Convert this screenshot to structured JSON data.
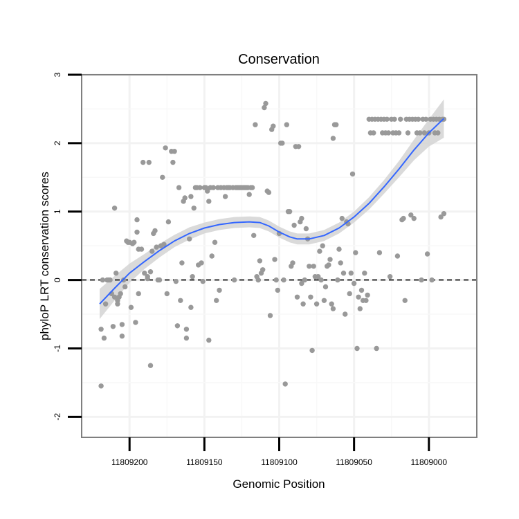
{
  "chart_data": {
    "type": "scatter",
    "title": "Conservation",
    "xlabel": "Genomic Position",
    "ylabel": "phyloP LRT conservation scores",
    "x_reversed": true,
    "xlim": [
      11809232,
      11808968
    ],
    "ylim": [
      -2.3,
      3
    ],
    "x_ticks": [
      11809200,
      11809150,
      11809100,
      11809050,
      11809000
    ],
    "x_tick_labels": [
      "11809200",
      "11809150",
      "11809100",
      "11809050",
      "11809000"
    ],
    "y_ticks": [
      -2,
      -1,
      0,
      1,
      2,
      3
    ],
    "y_tick_labels": [
      "-2",
      "-1",
      "0",
      "1",
      "2",
      "3"
    ],
    "reference_line": {
      "y": 0,
      "style": "dashed",
      "color": "#000000"
    },
    "grid": true,
    "colors": {
      "points": "#999999",
      "smooth_line": "#3366ff",
      "ribbon": "#d3d3d3",
      "panel_border": "#7f7f7f",
      "grid": "#f2f2f2"
    },
    "points": [
      [
        11809219,
        -1.55
      ],
      [
        11809219,
        -0.72
      ],
      [
        11809217,
        -0.85
      ],
      [
        11809218,
        0.0
      ],
      [
        11809216,
        -0.35
      ],
      [
        11809215,
        0.0
      ],
      [
        11809214,
        0.0
      ],
      [
        11809213,
        0.0
      ],
      [
        11809212,
        -0.2
      ],
      [
        11809211,
        -0.68
      ],
      [
        11809210,
        -0.25
      ],
      [
        11809210,
        1.05
      ],
      [
        11809209,
        0.1
      ],
      [
        11809208,
        -0.3
      ],
      [
        11809208,
        -0.35
      ],
      [
        11809207,
        -0.25
      ],
      [
        11809206,
        -0.2
      ],
      [
        11809205,
        -0.65
      ],
      [
        11809205,
        -0.82
      ],
      [
        11809204,
        0.0
      ],
      [
        11809203,
        -0.1
      ],
      [
        11809202,
        0.57
      ],
      [
        11809201,
        0.55
      ],
      [
        11809200,
        0.55
      ],
      [
        11809199,
        -0.4
      ],
      [
        11809198,
        0.53
      ],
      [
        11809197,
        0.55
      ],
      [
        11809196,
        -0.62
      ],
      [
        11809195,
        0.88
      ],
      [
        11809195,
        0.7
      ],
      [
        11809194,
        0.45
      ],
      [
        11809194,
        -0.2
      ],
      [
        11809192,
        0.45
      ],
      [
        11809191,
        1.72
      ],
      [
        11809190,
        0.1
      ],
      [
        11809188,
        0.05
      ],
      [
        11809188,
        0.02
      ],
      [
        11809187,
        1.72
      ],
      [
        11809186,
        0.12
      ],
      [
        11809186,
        -1.25
      ],
      [
        11809185,
        0.42
      ],
      [
        11809184,
        0.68
      ],
      [
        11809183,
        0.72
      ],
      [
        11809182,
        0.48
      ],
      [
        11809181,
        0.0
      ],
      [
        11809180,
        0.0
      ],
      [
        11809179,
        0.5
      ],
      [
        11809178,
        1.5
      ],
      [
        11809177,
        0.52
      ],
      [
        11809176,
        1.93
      ],
      [
        11809175,
        -0.2
      ],
      [
        11809174,
        0.85
      ],
      [
        11809172,
        1.88
      ],
      [
        11809171,
        1.72
      ],
      [
        11809170,
        1.88
      ],
      [
        11809169,
        -0.02
      ],
      [
        11809168,
        -0.67
      ],
      [
        11809167,
        1.35
      ],
      [
        11809166,
        -0.3
      ],
      [
        11809165,
        0.25
      ],
      [
        11809164,
        1.15
      ],
      [
        11809163,
        1.2
      ],
      [
        11809162,
        -0.85
      ],
      [
        11809162,
        -0.72
      ],
      [
        11809160,
        0.6
      ],
      [
        11809159,
        1.22
      ],
      [
        11809159,
        -0.4
      ],
      [
        11809158,
        0.05
      ],
      [
        11809157,
        1.05
      ],
      [
        11809156,
        1.35
      ],
      [
        11809155,
        1.35
      ],
      [
        11809154,
        0.22
      ],
      [
        11809153,
        1.35
      ],
      [
        11809152,
        0.25
      ],
      [
        11809151,
        -0.02
      ],
      [
        11809150,
        1.35
      ],
      [
        11809149,
        1.35
      ],
      [
        11809148,
        1.3
      ],
      [
        11809147,
        -0.88
      ],
      [
        11809147,
        1.15
      ],
      [
        11809146,
        1.35
      ],
      [
        11809145,
        0.35
      ],
      [
        11809144,
        1.35
      ],
      [
        11809143,
        0.55
      ],
      [
        11809142,
        -0.3
      ],
      [
        11809141,
        1.35
      ],
      [
        11809140,
        -0.15
      ],
      [
        11809139,
        1.35
      ],
      [
        11809137,
        1.35
      ],
      [
        11809136,
        1.22
      ],
      [
        11809135,
        1.35
      ],
      [
        11809134,
        1.35
      ],
      [
        11809133,
        1.35
      ],
      [
        11809131,
        1.35
      ],
      [
        11809130,
        0.0
      ],
      [
        11809129,
        1.35
      ],
      [
        11809128,
        1.35
      ],
      [
        11809127,
        1.35
      ],
      [
        11809126,
        1.35
      ],
      [
        11809125,
        1.35
      ],
      [
        11809124,
        1.35
      ],
      [
        11809123,
        1.35
      ],
      [
        11809122,
        1.35
      ],
      [
        11809121,
        1.35
      ],
      [
        11809120,
        1.25
      ],
      [
        11809119,
        1.35
      ],
      [
        11809118,
        1.35
      ],
      [
        11809117,
        0.65
      ],
      [
        11809116,
        2.27
      ],
      [
        11809115,
        0.05
      ],
      [
        11809114,
        0.0
      ],
      [
        11809113,
        0.28
      ],
      [
        11809112,
        0.1
      ],
      [
        11809111,
        0.15
      ],
      [
        11809110,
        2.52
      ],
      [
        11809109,
        2.58
      ],
      [
        11809108,
        1.3
      ],
      [
        11809107,
        1.28
      ],
      [
        11809106,
        -0.52
      ],
      [
        11809105,
        2.2
      ],
      [
        11809104,
        2.25
      ],
      [
        11809103,
        0.3
      ],
      [
        11809102,
        0.0
      ],
      [
        11809101,
        -0.15
      ],
      [
        11809100,
        0.68
      ],
      [
        11809099,
        2.0
      ],
      [
        11809098,
        2.0
      ],
      [
        11809097,
        0.0
      ],
      [
        11809096,
        -1.52
      ],
      [
        11809095,
        2.27
      ],
      [
        11809094,
        1.0
      ],
      [
        11809093,
        1.0
      ],
      [
        11809092,
        0.2
      ],
      [
        11809091,
        0.25
      ],
      [
        11809090,
        0.8
      ],
      [
        11809089,
        1.95
      ],
      [
        11809088,
        -0.25
      ],
      [
        11809087,
        1.95
      ],
      [
        11809086,
        0.85
      ],
      [
        11809085,
        0.9
      ],
      [
        11809085,
        -0.05
      ],
      [
        11809084,
        -0.35
      ],
      [
        11809083,
        0.0
      ],
      [
        11809082,
        0.75
      ],
      [
        11809081,
        0.6
      ],
      [
        11809080,
        0.2
      ],
      [
        11809079,
        -0.25
      ],
      [
        11809078,
        -1.03
      ],
      [
        11809077,
        0.2
      ],
      [
        11809076,
        0.05
      ],
      [
        11809075,
        -0.35
      ],
      [
        11809074,
        0.05
      ],
      [
        11809073,
        0.42
      ],
      [
        11809072,
        0.0
      ],
      [
        11809071,
        0.5
      ],
      [
        11809070,
        -0.3
      ],
      [
        11809069,
        -0.1
      ],
      [
        11809068,
        0.2
      ],
      [
        11809067,
        0.22
      ],
      [
        11809066,
        0.3
      ],
      [
        11809065,
        -0.35
      ],
      [
        11809064,
        -0.42
      ],
      [
        11809064,
        2.07
      ],
      [
        11809063,
        2.27
      ],
      [
        11809062,
        2.27
      ],
      [
        11809061,
        0.0
      ],
      [
        11809060,
        0.45
      ],
      [
        11809059,
        0.25
      ],
      [
        11809058,
        0.9
      ],
      [
        11809057,
        0.1
      ],
      [
        11809056,
        -0.5
      ],
      [
        11809055,
        0.85
      ],
      [
        11809054,
        0.82
      ],
      [
        11809053,
        -0.2
      ],
      [
        11809052,
        0.1
      ],
      [
        11809051,
        1.55
      ],
      [
        11809050,
        -0.05
      ],
      [
        11809049,
        0.4
      ],
      [
        11809048,
        -1.0
      ],
      [
        11809047,
        -0.25
      ],
      [
        11809046,
        -0.42
      ],
      [
        11809045,
        -0.15
      ],
      [
        11809044,
        -0.3
      ],
      [
        11809043,
        0.1
      ],
      [
        11809042,
        -0.3
      ],
      [
        11809041,
        -0.22
      ],
      [
        11809040,
        2.35
      ],
      [
        11809039,
        2.15
      ],
      [
        11809038,
        2.35
      ],
      [
        11809037,
        2.15
      ],
      [
        11809036,
        2.35
      ],
      [
        11809035,
        -1.0
      ],
      [
        11809034,
        2.35
      ],
      [
        11809033,
        0.4
      ],
      [
        11809032,
        2.35
      ],
      [
        11809031,
        2.15
      ],
      [
        11809030,
        2.35
      ],
      [
        11809029,
        2.15
      ],
      [
        11809028,
        2.35
      ],
      [
        11809027,
        2.15
      ],
      [
        11809026,
        0.05
      ],
      [
        11809025,
        2.35
      ],
      [
        11809024,
        2.15
      ],
      [
        11809023,
        2.35
      ],
      [
        11809022,
        2.15
      ],
      [
        11809021,
        0.35
      ],
      [
        11809020,
        2.15
      ],
      [
        11809019,
        2.35
      ],
      [
        11809018,
        0.88
      ],
      [
        11809017,
        0.9
      ],
      [
        11809016,
        -0.3
      ],
      [
        11809015,
        2.35
      ],
      [
        11809014,
        2.15
      ],
      [
        11809013,
        2.35
      ],
      [
        11809012,
        0.95
      ],
      [
        11809011,
        2.35
      ],
      [
        11809010,
        0.9
      ],
      [
        11809009,
        2.35
      ],
      [
        11809008,
        2.15
      ],
      [
        11809007,
        2.35
      ],
      [
        11809006,
        2.15
      ],
      [
        11809005,
        0.0
      ],
      [
        11809004,
        2.35
      ],
      [
        11809003,
        2.15
      ],
      [
        11809002,
        2.35
      ],
      [
        11809001,
        0.38
      ],
      [
        11809000,
        2.15
      ],
      [
        11808999,
        2.35
      ],
      [
        11808998,
        0.0
      ],
      [
        11808997,
        2.35
      ],
      [
        11808996,
        2.15
      ],
      [
        11808995,
        2.35
      ],
      [
        11808994,
        2.15
      ],
      [
        11808993,
        2.35
      ],
      [
        11808992,
        0.92
      ],
      [
        11808991,
        2.35
      ],
      [
        11808990,
        0.97
      ],
      [
        11808990,
        2.35
      ]
    ],
    "smooth_line": [
      [
        11809220,
        -0.35
      ],
      [
        11809210,
        -0.12
      ],
      [
        11809200,
        0.1
      ],
      [
        11809190,
        0.27
      ],
      [
        11809180,
        0.43
      ],
      [
        11809170,
        0.57
      ],
      [
        11809160,
        0.68
      ],
      [
        11809150,
        0.76
      ],
      [
        11809140,
        0.81
      ],
      [
        11809130,
        0.84
      ],
      [
        11809120,
        0.85
      ],
      [
        11809113,
        0.84
      ],
      [
        11809107,
        0.79
      ],
      [
        11809100,
        0.7
      ],
      [
        11809093,
        0.63
      ],
      [
        11809088,
        0.6
      ],
      [
        11809080,
        0.6
      ],
      [
        11809070,
        0.65
      ],
      [
        11809060,
        0.76
      ],
      [
        11809050,
        0.92
      ],
      [
        11809040,
        1.12
      ],
      [
        11809030,
        1.36
      ],
      [
        11809020,
        1.62
      ],
      [
        11809010,
        1.9
      ],
      [
        11809000,
        2.15
      ],
      [
        11808990,
        2.36
      ]
    ],
    "ribbon_halfwidth": [
      0.22,
      0.18,
      0.14,
      0.11,
      0.1,
      0.09,
      0.09,
      0.08,
      0.08,
      0.08,
      0.08,
      0.08,
      0.08,
      0.08,
      0.08,
      0.08,
      0.08,
      0.08,
      0.08,
      0.08,
      0.09,
      0.1,
      0.12,
      0.15,
      0.2,
      0.28
    ]
  }
}
